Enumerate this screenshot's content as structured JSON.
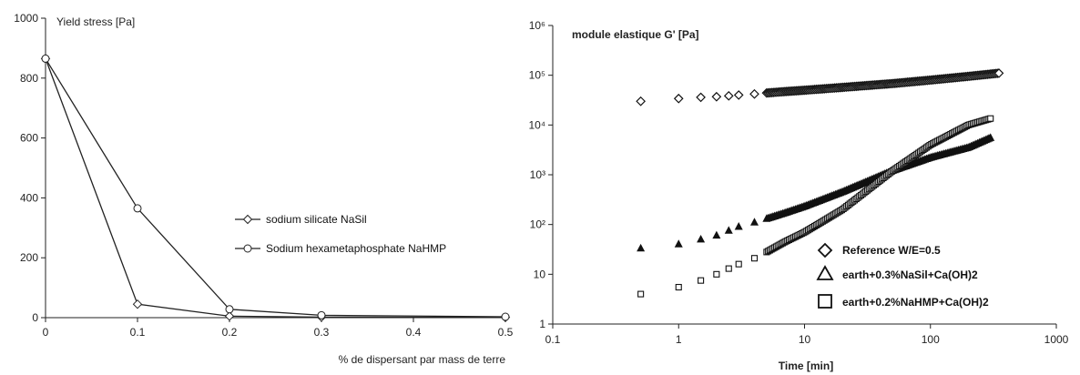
{
  "chart_data": [
    {
      "type": "line",
      "ylabel": "Yield stress [Pa]",
      "xlabel": "% de dispersant par mass de terre",
      "xlim": [
        0,
        0.5
      ],
      "ylim": [
        0,
        1000
      ],
      "xticks": [
        "0",
        "0.1",
        "0.2",
        "0.3",
        "0.4",
        "0.5"
      ],
      "yticks": [
        "0",
        "200",
        "400",
        "600",
        "800",
        "1000"
      ],
      "grid": false,
      "legend_position": "center-right",
      "series": [
        {
          "name": "sodium silicate NaSil",
          "marker": "diamond",
          "x": [
            0,
            0.1,
            0.2,
            0.3,
            0.5
          ],
          "y": [
            865,
            45,
            5,
            2,
            1
          ]
        },
        {
          "name": "Sodium hexametaphosphate NaHMP",
          "marker": "circle",
          "x": [
            0,
            0.1,
            0.2,
            0.3,
            0.5
          ],
          "y": [
            865,
            365,
            28,
            8,
            3
          ]
        }
      ]
    },
    {
      "type": "scatter",
      "ylabel": "module elastique G' [Pa]",
      "xlabel": "Time [min]",
      "xscale": "log",
      "yscale": "log",
      "xlim": [
        0.1,
        1000
      ],
      "ylim": [
        1,
        1000000
      ],
      "xticks": [
        "0.1",
        "1",
        "10",
        "100",
        "1000"
      ],
      "yticks": [
        "1",
        "10",
        "10²",
        "10³",
        "10⁴",
        "10⁵",
        "10⁶"
      ],
      "grid": false,
      "legend_position": "bottom-right",
      "series": [
        {
          "name": "Reference W/E=0.5",
          "marker": "diamond",
          "x": [
            0.5,
            1,
            1.5,
            2,
            2.5,
            3,
            4,
            5,
            7,
            10,
            20,
            50,
            100,
            200,
            350
          ],
          "y": [
            30000,
            34000,
            36000,
            37000,
            38500,
            40000,
            42000,
            44000,
            47000,
            50000,
            57000,
            68000,
            80000,
            95000,
            110000
          ]
        },
        {
          "name": "earth+0.3%NaSil+Ca(OH)2",
          "marker": "triangle",
          "x": [
            0.5,
            1,
            1.5,
            2,
            2.5,
            3,
            4,
            5,
            7,
            10,
            20,
            50,
            100,
            200,
            300
          ],
          "y": [
            33,
            40,
            50,
            60,
            75,
            90,
            110,
            130,
            170,
            230,
            450,
            1200,
            2200,
            3500,
            5500
          ]
        },
        {
          "name": "earth+0.2%NaHMP+Ca(OH)2",
          "marker": "square",
          "x": [
            0.5,
            1,
            1.5,
            2,
            2.5,
            3,
            4,
            5,
            7,
            10,
            20,
            50,
            100,
            200,
            300
          ],
          "y": [
            4,
            5.5,
            7.5,
            10,
            13,
            16,
            21,
            28,
            45,
            70,
            200,
            1200,
            4000,
            10000,
            13500
          ]
        }
      ]
    }
  ]
}
